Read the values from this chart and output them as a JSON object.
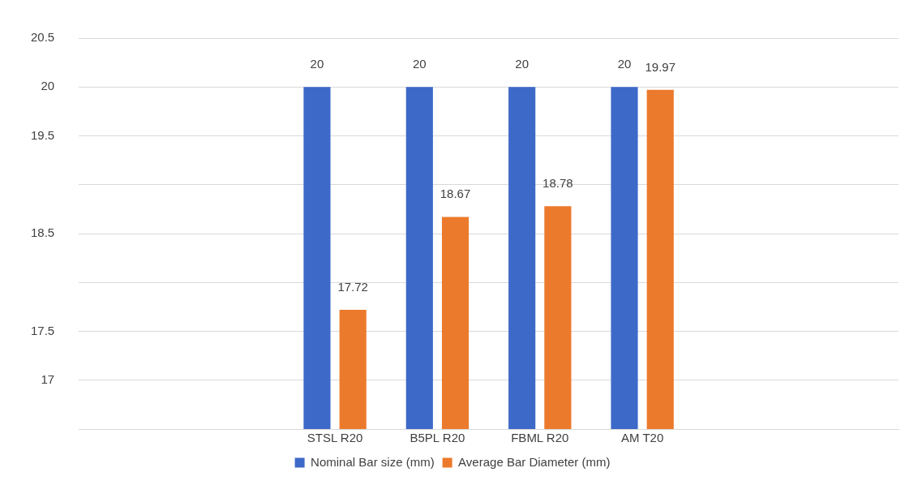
{
  "chart_data": {
    "type": "bar",
    "categories": [
      null,
      null,
      "STSL R20",
      "B5PL R20",
      "FBML R20",
      "AM T20",
      null,
      null
    ],
    "series": [
      {
        "name": "Nominal Bar size (mm)",
        "color": "#3d69c9",
        "values": [
          null,
          null,
          20,
          20,
          20,
          20,
          null,
          null
        ]
      },
      {
        "name": "Average Bar Diameter (mm)",
        "color": "#ec7a2c",
        "values": [
          null,
          null,
          17.72,
          18.67,
          18.78,
          19.97,
          null,
          null
        ]
      }
    ],
    "ylim": [
      16.5,
      20.5
    ],
    "yticks": [
      {
        "value": 16.5,
        "label": null
      },
      17,
      17.5,
      {
        "value": 18,
        "label": null
      },
      18.5,
      {
        "value": 19,
        "label": null
      },
      19.5,
      20,
      20.5
    ],
    "grid": "y",
    "legend": "bottom",
    "data_labels": true
  }
}
